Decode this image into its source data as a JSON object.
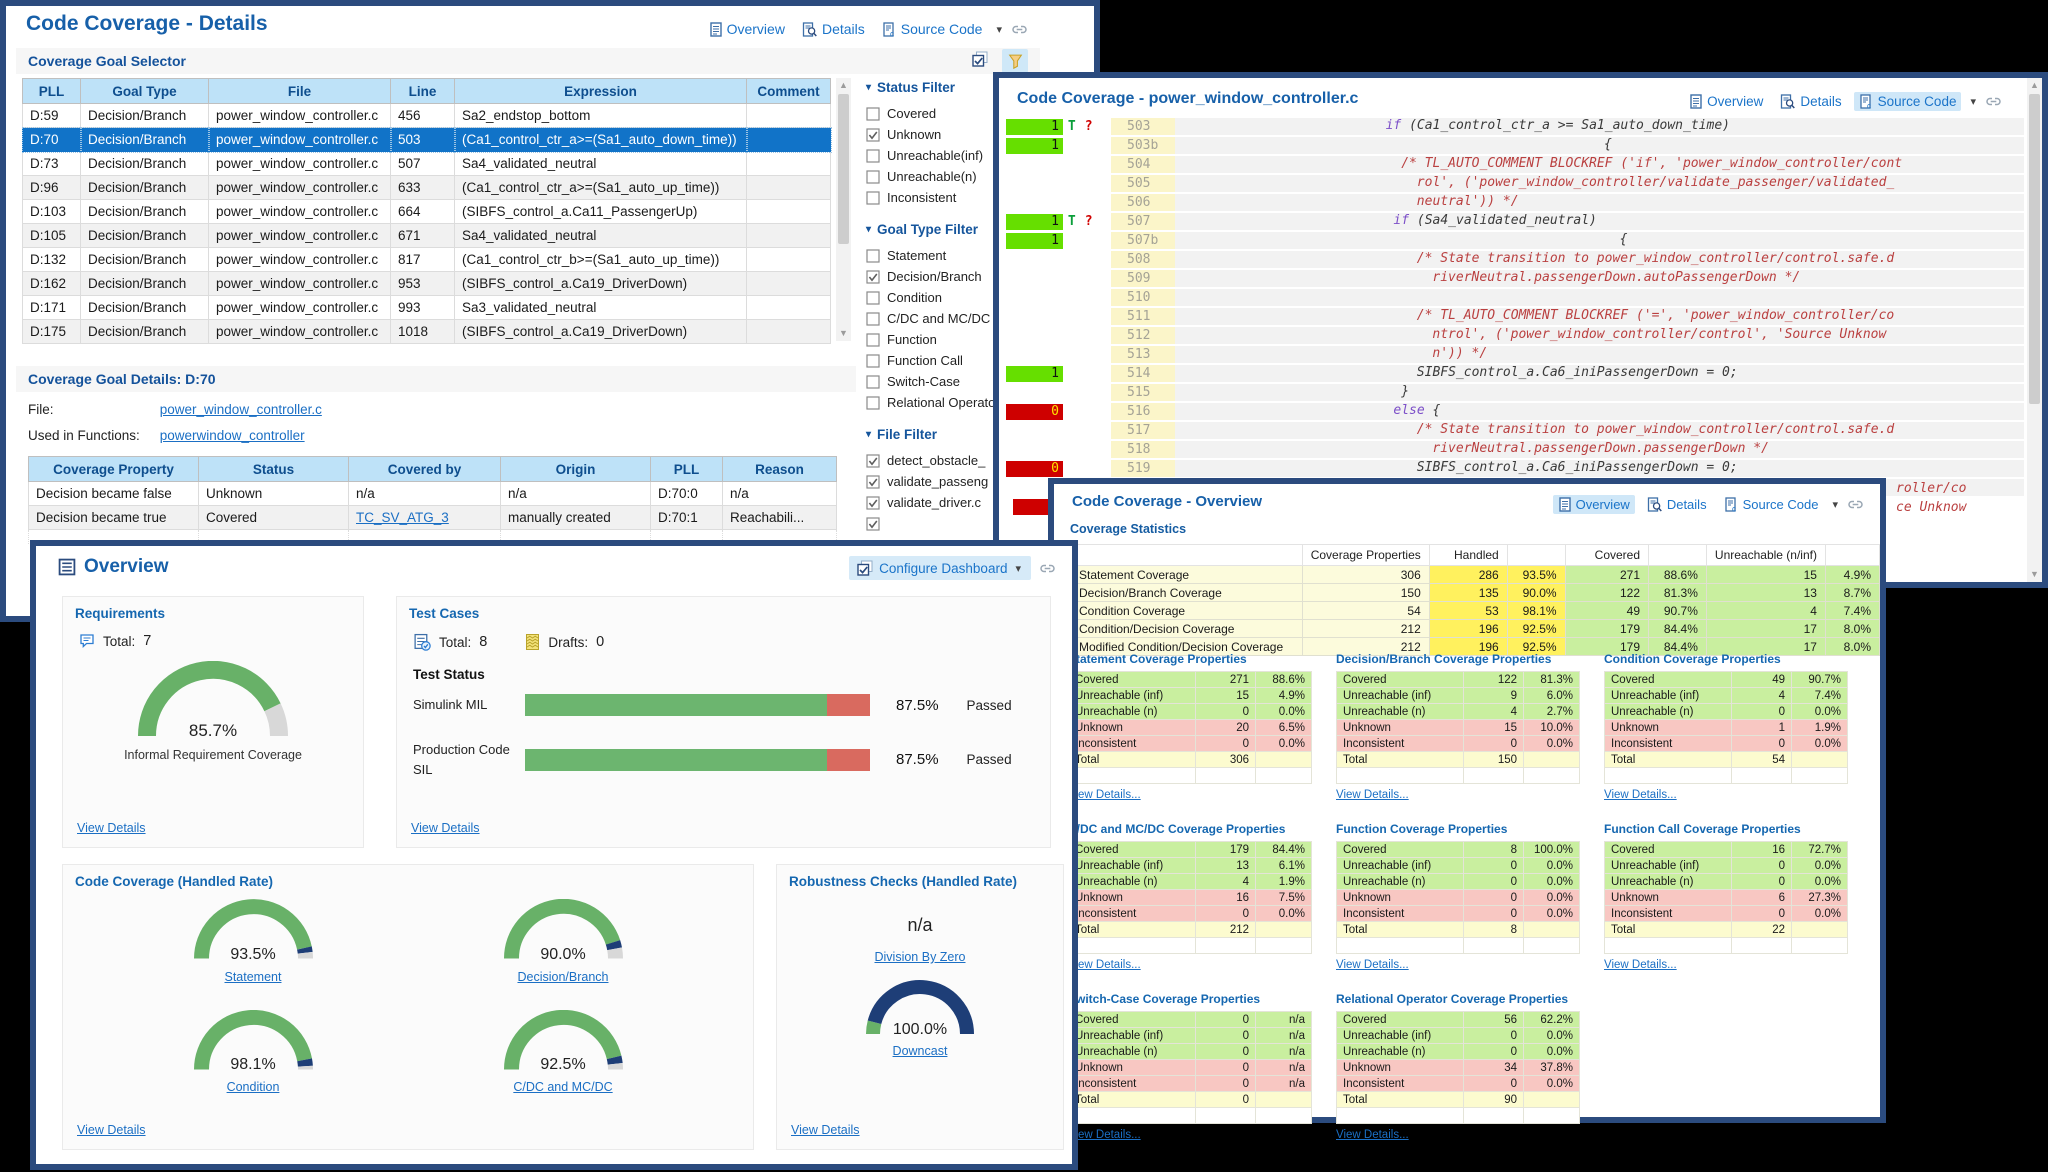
{
  "nav": {
    "overview": "Overview",
    "details": "Details",
    "source_code": "Source Code"
  },
  "colors": {
    "accent_blue": "#1B74C9",
    "navy_border": "#2B4B7E",
    "selected_row": "#1173C8",
    "covered_green": "#C9EF9F",
    "unknown_pink": "#F8C7C2",
    "total_yellow": "#FCFBCF",
    "handled_yellow": "#FFF15E",
    "block_green": "#66DF00",
    "block_red": "#CE0000",
    "gauge_green": "#68B168",
    "gauge_navy": "#1E3E77",
    "gauge_gray": "#D8D8D8",
    "bar_red": "#D96A5F"
  },
  "details": {
    "title": "Code Coverage - Details",
    "selector": {
      "heading": "Coverage Goal Selector",
      "columns": [
        "PLL",
        "Goal Type",
        "File",
        "Line",
        "Expression",
        "Comment"
      ],
      "rows": [
        {
          "cells": [
            "D:59",
            "Decision/Branch",
            "power_window_controller.c",
            "456",
            "Sa2_endstop_bottom",
            ""
          ]
        },
        {
          "cells": [
            "D:70",
            "Decision/Branch",
            "power_window_controller.c",
            "503",
            "(Ca1_control_ctr_a>=(Sa1_auto_down_time))",
            ""
          ],
          "selected": true
        },
        {
          "cells": [
            "D:73",
            "Decision/Branch",
            "power_window_controller.c",
            "507",
            "Sa4_validated_neutral",
            ""
          ]
        },
        {
          "cells": [
            "D:96",
            "Decision/Branch",
            "power_window_controller.c",
            "633",
            "(Ca1_control_ctr_a>=(Sa1_auto_up_time))",
            ""
          ]
        },
        {
          "cells": [
            "D:103",
            "Decision/Branch",
            "power_window_controller.c",
            "664",
            "(SIBFS_control_a.Ca11_PassengerUp)",
            ""
          ]
        },
        {
          "cells": [
            "D:105",
            "Decision/Branch",
            "power_window_controller.c",
            "671",
            "Sa4_validated_neutral",
            ""
          ]
        },
        {
          "cells": [
            "D:132",
            "Decision/Branch",
            "power_window_controller.c",
            "817",
            "(Ca1_control_ctr_b>=(Sa1_auto_up_time))",
            ""
          ]
        },
        {
          "cells": [
            "D:162",
            "Decision/Branch",
            "power_window_controller.c",
            "953",
            "(SIBFS_control_a.Ca19_DriverDown)",
            ""
          ]
        },
        {
          "cells": [
            "D:171",
            "Decision/Branch",
            "power_window_controller.c",
            "993",
            "Sa3_validated_neutral",
            ""
          ]
        },
        {
          "cells": [
            "D:175",
            "Decision/Branch",
            "power_window_controller.c",
            "1018",
            "(SIBFS_control_a.Ca19_DriverDown)",
            ""
          ]
        }
      ]
    },
    "goal_details": {
      "heading": "Coverage Goal Details: D:70",
      "file_label": "File:",
      "file_link": "power_window_controller.c",
      "functions_label": "Used in Functions:",
      "functions_link": "powerwindow_controller",
      "columns": [
        "Coverage Property",
        "Status",
        "Covered by",
        "Origin",
        "PLL",
        "Reason"
      ],
      "rows": [
        {
          "cells": [
            "Decision became false",
            "Unknown",
            "n/a",
            "n/a",
            "D:70:0",
            "n/a"
          ]
        },
        {
          "cells": [
            "Decision became true",
            "Covered",
            "TC_SV_ATG_3",
            "manually created",
            "D:70:1",
            "Reachabili..."
          ],
          "link_cols": [
            2
          ]
        }
      ]
    },
    "filters": [
      {
        "title": "Status Filter",
        "items": [
          {
            "label": "Covered",
            "checked": false
          },
          {
            "label": "Unknown",
            "checked": true
          },
          {
            "label": "Unreachable(inf)",
            "checked": false
          },
          {
            "label": "Unreachable(n)",
            "checked": false
          },
          {
            "label": "Inconsistent",
            "checked": false
          }
        ]
      },
      {
        "title": "Goal Type Filter",
        "items": [
          {
            "label": "Statement",
            "checked": false
          },
          {
            "label": "Decision/Branch",
            "checked": true
          },
          {
            "label": "Condition",
            "checked": false
          },
          {
            "label": "C/DC and MC/DC",
            "checked": false
          },
          {
            "label": "Function",
            "checked": false
          },
          {
            "label": "Function Call",
            "checked": false
          },
          {
            "label": "Switch-Case",
            "checked": false
          },
          {
            "label": "Relational Operator",
            "checked": false
          }
        ]
      },
      {
        "title": "File Filter",
        "items": [
          {
            "label": "detect_obstacle_",
            "checked": true
          },
          {
            "label": "validate_passeng",
            "checked": true
          },
          {
            "label": "validate_driver.c",
            "checked": true
          },
          {
            "label": "",
            "checked": true
          }
        ]
      }
    ]
  },
  "source": {
    "title": "Code Coverage - power_window_controller.c",
    "active_view": "source_code",
    "lines": [
      {
        "num": "503",
        "block": "green",
        "count": "1",
        "marks": "T?",
        "indent": 27,
        "segs": [
          [
            "k",
            "if"
          ],
          [
            "p",
            " (Ca1_control_ctr_a >= Sa1_auto_down_time)"
          ]
        ]
      },
      {
        "num": "503b",
        "block": "green",
        "count": "1",
        "indent": 55,
        "segs": [
          [
            "p",
            "{"
          ]
        ]
      },
      {
        "num": "504",
        "indent": 29,
        "segs": [
          [
            "c",
            "/* TL_AUTO_COMMENT BLOCKREF ('if', 'power_window_controller/cont"
          ]
        ]
      },
      {
        "num": "505",
        "indent": 31,
        "segs": [
          [
            "c",
            "rol', ('power_window_controller/validate_passenger/validated_"
          ]
        ]
      },
      {
        "num": "506",
        "indent": 31,
        "segs": [
          [
            "c",
            "neutral')) */"
          ]
        ]
      },
      {
        "num": "507",
        "block": "green",
        "count": "1",
        "marks": "T?",
        "indent": 28,
        "segs": [
          [
            "k",
            "if"
          ],
          [
            "p",
            " (Sa4_validated_neutral)"
          ]
        ]
      },
      {
        "num": "507b",
        "block": "green",
        "count": "1",
        "indent": 57,
        "segs": [
          [
            "p",
            "{"
          ]
        ]
      },
      {
        "num": "508",
        "indent": 31,
        "segs": [
          [
            "c",
            "/* State transition to power_window_controller/control.safe.d"
          ]
        ]
      },
      {
        "num": "509",
        "indent": 33,
        "segs": [
          [
            "c",
            "riverNeutral.passengerDown.autoPassengerDown */"
          ]
        ]
      },
      {
        "num": "510",
        "segs": []
      },
      {
        "num": "511",
        "indent": 31,
        "segs": [
          [
            "c",
            "/* TL_AUTO_COMMENT BLOCKREF ('=', 'power_window_controller/co"
          ]
        ]
      },
      {
        "num": "512",
        "indent": 33,
        "segs": [
          [
            "c",
            "ntrol', ('power_window_controller/control', 'Source Unknow"
          ]
        ]
      },
      {
        "num": "513",
        "indent": 33,
        "segs": [
          [
            "c",
            "n')) */"
          ]
        ]
      },
      {
        "num": "514",
        "block": "green",
        "count": "1",
        "indent": 31,
        "segs": [
          [
            "p",
            "SIBFS_control_a.Ca6_iniPassengerDown = 0;"
          ]
        ]
      },
      {
        "num": "515",
        "indent": 29,
        "segs": [
          [
            "p",
            "}"
          ]
        ]
      },
      {
        "num": "516",
        "block": "red",
        "count": "0",
        "indent": 28,
        "segs": [
          [
            "k",
            "else"
          ],
          [
            "p",
            " {"
          ]
        ]
      },
      {
        "num": "517",
        "indent": 31,
        "segs": [
          [
            "c",
            "/* State transition to power_window_controller/control.safe.d"
          ]
        ]
      },
      {
        "num": "518",
        "indent": 33,
        "segs": [
          [
            "c",
            "riverNeutral.passengerDown.passengerDown */"
          ]
        ]
      },
      {
        "num": "519",
        "block": "red",
        "count": "0",
        "indent": 31,
        "segs": [
          [
            "p",
            "SIBFS_control_a.Ca6_iniPassengerDown = 0;"
          ]
        ]
      },
      {
        "num": "520",
        "segs": []
      }
    ],
    "clipped": [
      "roller/co",
      "ce Unknow"
    ],
    "clipped_block_count": "0"
  },
  "ccov": {
    "title": "Code Coverage - Overview",
    "active_view": "overview",
    "stats": {
      "heading": "Coverage Statistics",
      "headers": [
        "",
        "Coverage Properties",
        "Handled",
        "",
        "Covered",
        "",
        "Unreachable (n/inf)",
        ""
      ],
      "rows": [
        [
          "Statement Coverage",
          "306",
          "286",
          "93.5%",
          "271",
          "88.6%",
          "15",
          "4.9%"
        ],
        [
          "Decision/Branch Coverage",
          "150",
          "135",
          "90.0%",
          "122",
          "81.3%",
          "13",
          "8.7%"
        ],
        [
          "Condition Coverage",
          "54",
          "53",
          "98.1%",
          "49",
          "90.7%",
          "4",
          "7.4%"
        ],
        [
          "Condition/Decision Coverage",
          "212",
          "196",
          "92.5%",
          "179",
          "84.4%",
          "17",
          "8.0%"
        ],
        [
          "Modified Condition/Decision Coverage",
          "212",
          "196",
          "92.5%",
          "179",
          "84.4%",
          "17",
          "8.0%"
        ]
      ]
    },
    "view_details_label": "View Details...",
    "panel_row_labels": [
      "Covered",
      "Unreachable (inf)",
      "Unreachable (n)",
      "Unknown",
      "Inconsistent",
      "Total"
    ],
    "panels": [
      {
        "title": "Statement Coverage Properties",
        "values": [
          [
            "271",
            "88.6%"
          ],
          [
            "15",
            "4.9%"
          ],
          [
            "0",
            "0.0%"
          ],
          [
            "20",
            "6.5%"
          ],
          [
            "0",
            "0.0%"
          ],
          [
            "306",
            ""
          ]
        ]
      },
      {
        "title": "Decision/Branch Coverage Properties",
        "values": [
          [
            "122",
            "81.3%"
          ],
          [
            "9",
            "6.0%"
          ],
          [
            "4",
            "2.7%"
          ],
          [
            "15",
            "10.0%"
          ],
          [
            "0",
            "0.0%"
          ],
          [
            "150",
            ""
          ]
        ]
      },
      {
        "title": "Condition Coverage Properties",
        "values": [
          [
            "49",
            "90.7%"
          ],
          [
            "4",
            "7.4%"
          ],
          [
            "0",
            "0.0%"
          ],
          [
            "1",
            "1.9%"
          ],
          [
            "0",
            "0.0%"
          ],
          [
            "54",
            ""
          ]
        ]
      },
      {
        "title": "C/DC and MC/DC Coverage Properties",
        "values": [
          [
            "179",
            "84.4%"
          ],
          [
            "13",
            "6.1%"
          ],
          [
            "4",
            "1.9%"
          ],
          [
            "16",
            "7.5%"
          ],
          [
            "0",
            "0.0%"
          ],
          [
            "212",
            ""
          ]
        ]
      },
      {
        "title": "Function Coverage Properties",
        "values": [
          [
            "8",
            "100.0%"
          ],
          [
            "0",
            "0.0%"
          ],
          [
            "0",
            "0.0%"
          ],
          [
            "0",
            "0.0%"
          ],
          [
            "0",
            "0.0%"
          ],
          [
            "8",
            ""
          ]
        ]
      },
      {
        "title": "Function Call Coverage Properties",
        "values": [
          [
            "16",
            "72.7%"
          ],
          [
            "0",
            "0.0%"
          ],
          [
            "0",
            "0.0%"
          ],
          [
            "6",
            "27.3%"
          ],
          [
            "0",
            "0.0%"
          ],
          [
            "22",
            ""
          ]
        ]
      },
      {
        "title": "Switch-Case Coverage Properties",
        "values": [
          [
            "0",
            "n/a"
          ],
          [
            "0",
            "n/a"
          ],
          [
            "0",
            "n/a"
          ],
          [
            "0",
            "n/a"
          ],
          [
            "0",
            "n/a"
          ],
          [
            "0",
            ""
          ]
        ]
      },
      {
        "title": "Relational Operator Coverage Properties",
        "values": [
          [
            "56",
            "62.2%"
          ],
          [
            "0",
            "0.0%"
          ],
          [
            "0",
            "0.0%"
          ],
          [
            "34",
            "37.8%"
          ],
          [
            "0",
            "0.0%"
          ],
          [
            "90",
            ""
          ]
        ]
      }
    ]
  },
  "overview": {
    "title": "Overview",
    "configure_label": "Configure Dashboard",
    "requirements": {
      "heading": "Requirements",
      "total_label": "Total:",
      "total": "7",
      "gauge": {
        "pct": "85.7%",
        "segments": [
          [
            "green",
            85.7
          ],
          [
            "gray",
            14.3
          ]
        ]
      },
      "caption": "Informal Requirement Coverage",
      "view_details": "View Details"
    },
    "test_cases": {
      "heading": "Test Cases",
      "total_label": "Total:",
      "total": "8",
      "drafts_label": "Drafts:",
      "drafts": "0",
      "status_heading": "Test Status",
      "bars": [
        {
          "label": "Simulink MIL",
          "value": 87.5,
          "pct": "87.5%",
          "status": "Passed"
        },
        {
          "label": "Production Code SIL",
          "value": 87.5,
          "pct": "87.5%",
          "status": "Passed"
        }
      ],
      "view_details": "View Details"
    },
    "code_coverage": {
      "heading": "Code Coverage (Handled Rate)",
      "gauges": [
        {
          "label": "Statement",
          "pct": "93.5%",
          "segments": [
            [
              "green",
              93.5
            ],
            [
              "navy",
              3
            ],
            [
              "gray",
              3.5
            ]
          ]
        },
        {
          "label": "Decision/Branch",
          "pct": "90.0%",
          "segments": [
            [
              "green",
              90
            ],
            [
              "navy",
              4
            ],
            [
              "gray",
              6
            ]
          ]
        },
        {
          "label": "Condition",
          "pct": "98.1%",
          "segments": [
            [
              "green",
              94
            ],
            [
              "navy",
              4
            ],
            [
              "gray",
              2
            ]
          ]
        },
        {
          "label": "C/DC and MC/DC",
          "pct": "92.5%",
          "segments": [
            [
              "green",
              92.5
            ],
            [
              "navy",
              4
            ],
            [
              "gray",
              3.5
            ]
          ]
        }
      ],
      "view_details": "View Details"
    },
    "robustness": {
      "heading": "Robustness Checks (Handled Rate)",
      "na_value": "n/a",
      "na_link": "Division By Zero",
      "gauge": {
        "pct": "100.0%",
        "label": "Downcast",
        "segments": [
          [
            "green",
            8
          ],
          [
            "navy",
            92
          ]
        ]
      },
      "view_details": "View Details"
    }
  }
}
